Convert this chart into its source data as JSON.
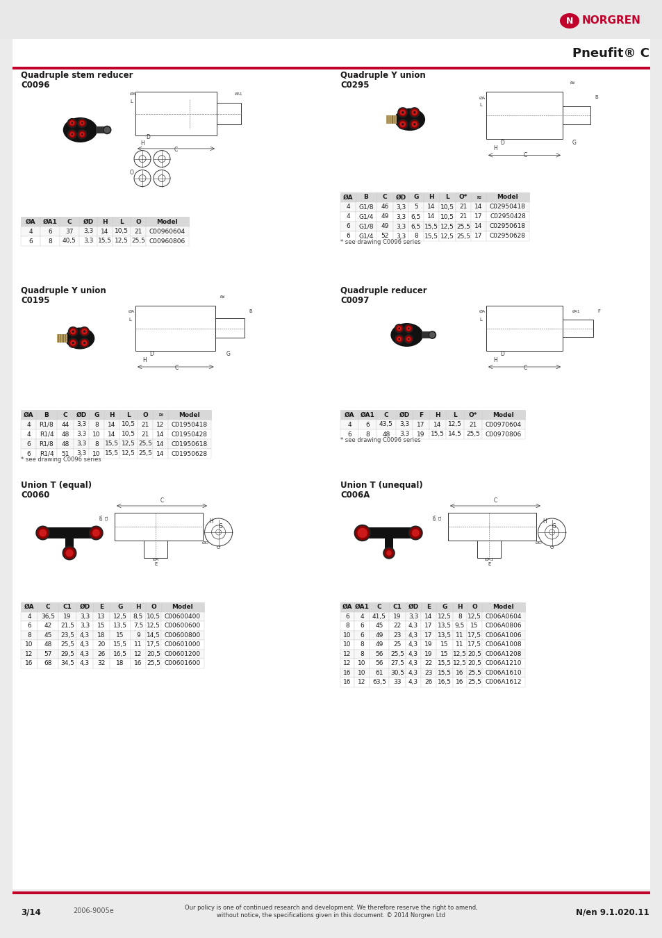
{
  "page_bg": "#ebebeb",
  "content_bg": "#ffffff",
  "norgren_red": "#c0002a",
  "text_dark": "#1a1a1a",
  "table_header_bg": "#e0e0e0",
  "table_alt_bg": "#f5f5f5",
  "page_number": "3/14",
  "doc_number": "2006-9005e",
  "footer_line1": "Our policy is one of continued research and development. We therefore reserve the right to amend,",
  "footer_line2": "without notice, the specifications given in this document. © 2014 Norgren Ltd",
  "version": "N/en 9.1.020.11",
  "title": "Pneufit® C",
  "sec0_left_title": "Quadruple stem reducer",
  "sec0_left_code": "C0096",
  "sec0_left_cols": [
    "ØA",
    "ØA1",
    "C",
    "ØD",
    "H",
    "L",
    "O",
    "Model"
  ],
  "sec0_left_data": [
    [
      "4",
      "6",
      "37",
      "3,3",
      "14",
      "10,5",
      "21",
      "C00960604"
    ],
    [
      "6",
      "8",
      "40,5",
      "3,3",
      "15,5",
      "12,5",
      "25,5",
      "C00960806"
    ]
  ],
  "sec0_right_title": "Quadruple Y union",
  "sec0_right_code": "C0295",
  "sec0_right_cols": [
    "ØA",
    "B",
    "C",
    "ØD",
    "G",
    "H",
    "L",
    "O*",
    "≈",
    "Model"
  ],
  "sec0_right_data": [
    [
      "4",
      "G1/8",
      "46",
      "3,3",
      "5",
      "14",
      "10,5",
      "21",
      "14",
      "C02950418"
    ],
    [
      "4",
      "G1/4",
      "49",
      "3,3",
      "6,5",
      "14",
      "10,5",
      "21",
      "17",
      "C02950428"
    ],
    [
      "6",
      "G1/8",
      "49",
      "3,3",
      "6,5",
      "15,5",
      "12,5",
      "25,5",
      "14",
      "C02950618"
    ],
    [
      "6",
      "G1/4",
      "52",
      "3,3",
      "8",
      "15,5",
      "12,5",
      "25,5",
      "17",
      "C02950628"
    ]
  ],
  "sec0_right_note": "* see drawing C0096 series",
  "sec1_left_title": "Quadruple Y union",
  "sec1_left_code": "C0195",
  "sec1_left_cols": [
    "ØA",
    "B",
    "C",
    "ØD",
    "G",
    "H",
    "L",
    "O",
    "≈",
    "Model"
  ],
  "sec1_left_data": [
    [
      "4",
      "R1/8",
      "44",
      "3,3",
      "8",
      "14",
      "10,5",
      "21",
      "12",
      "C01950418"
    ],
    [
      "4",
      "R1/4",
      "48",
      "3,3",
      "10",
      "14",
      "10,5",
      "21",
      "14",
      "C01950428"
    ],
    [
      "6",
      "R1/8",
      "48",
      "3,3",
      "8",
      "15,5",
      "12,5",
      "25,5",
      "14",
      "C01950618"
    ],
    [
      "6",
      "R1/4",
      "51",
      "3,3",
      "10",
      "15,5",
      "12,5",
      "25,5",
      "14",
      "C01950628"
    ]
  ],
  "sec1_left_note": "* see drawing C0096 series",
  "sec1_right_title": "Quadruple reducer",
  "sec1_right_code": "C0097",
  "sec1_right_cols": [
    "ØA",
    "ØA1",
    "C",
    "ØD",
    "F",
    "H",
    "L",
    "O*",
    "Model"
  ],
  "sec1_right_data": [
    [
      "4",
      "6",
      "43,5",
      "3,3",
      "17",
      "14",
      "12,5",
      "21",
      "C00970604"
    ],
    [
      "6",
      "8",
      "48",
      "3,3",
      "19",
      "15,5",
      "14,5",
      "25,5",
      "C00970806"
    ]
  ],
  "sec1_right_note": "* see drawing C0096 series",
  "sec2_left_title": "Union T (equal)",
  "sec2_left_code": "C0060",
  "sec2_left_cols": [
    "ØA",
    "C",
    "C1",
    "ØD",
    "E",
    "G",
    "H",
    "O",
    "Model"
  ],
  "sec2_left_data": [
    [
      "4",
      "36,5",
      "19",
      "3,3",
      "13",
      "12,5",
      "8,5",
      "10,5",
      "C00600400"
    ],
    [
      "6",
      "42",
      "21,5",
      "3,3",
      "15",
      "13,5",
      "7,5",
      "12,5",
      "C00600600"
    ],
    [
      "8",
      "45",
      "23,5",
      "4,3",
      "18",
      "15",
      "9",
      "14,5",
      "C00600800"
    ],
    [
      "10",
      "48",
      "25,5",
      "4,3",
      "20",
      "15,5",
      "11",
      "17,5",
      "C00601000"
    ],
    [
      "12",
      "57",
      "29,5",
      "4,3",
      "26",
      "16,5",
      "12",
      "20,5",
      "C00601200"
    ],
    [
      "16",
      "68",
      "34,5",
      "4,3",
      "32",
      "18",
      "16",
      "25,5",
      "C00601600"
    ]
  ],
  "sec2_right_title": "Union T (unequal)",
  "sec2_right_code": "C006A",
  "sec2_right_cols": [
    "ØA",
    "ØA1",
    "C",
    "C1",
    "ØD",
    "E",
    "G",
    "H",
    "O",
    "Model"
  ],
  "sec2_right_data": [
    [
      "6",
      "4",
      "41,5",
      "19",
      "3,3",
      "14",
      "12,5",
      "8",
      "12,5",
      "C006A0604"
    ],
    [
      "8",
      "6",
      "45",
      "22",
      "4,3",
      "17",
      "13,5",
      "9,5",
      "15",
      "C006A0806"
    ],
    [
      "10",
      "6",
      "49",
      "23",
      "4,3",
      "17",
      "13,5",
      "11",
      "17,5",
      "C006A1006"
    ],
    [
      "10",
      "8",
      "49",
      "25",
      "4,3",
      "19",
      "15",
      "11",
      "17,5",
      "C006A1008"
    ],
    [
      "12",
      "8",
      "56",
      "25,5",
      "4,3",
      "19",
      "15",
      "12,5",
      "20,5",
      "C006A1208"
    ],
    [
      "12",
      "10",
      "56",
      "27,5",
      "4,3",
      "22",
      "15,5",
      "12,5",
      "20,5",
      "C006A1210"
    ],
    [
      "16",
      "10",
      "61",
      "30,5",
      "4,3",
      "23",
      "15,5",
      "16",
      "25,5",
      "C006A1610"
    ],
    [
      "16",
      "12",
      "63,5",
      "33",
      "4,3",
      "26",
      "16,5",
      "16",
      "25,5",
      "C006A1612"
    ]
  ]
}
